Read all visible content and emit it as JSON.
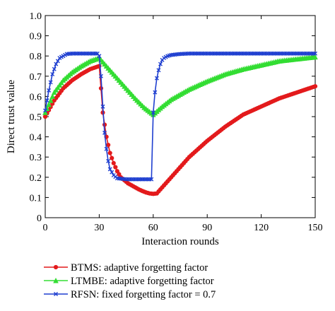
{
  "chart_data": {
    "type": "line",
    "title": "",
    "xlabel": "Interaction rounds",
    "ylabel": "Direct trust value",
    "xlim": [
      0,
      150
    ],
    "ylim": [
      0,
      1.0
    ],
    "xticks": [
      "0",
      "30",
      "60",
      "90",
      "120",
      "150"
    ],
    "yticks": [
      "0",
      "0.1",
      "0.2",
      "0.3",
      "0.4",
      "0.5",
      "0.6",
      "0.7",
      "0.8",
      "0.9",
      "1.0"
    ],
    "grid": false,
    "legend_position": "bottom",
    "series": [
      {
        "name": "BTMS: adaptive forgetting factor",
        "color": "#e31a1c",
        "marker": "circle",
        "x": [
          0,
          5,
          10,
          15,
          20,
          25,
          30,
          31,
          32,
          34,
          36,
          38,
          40,
          42,
          44,
          46,
          48,
          50,
          52,
          54,
          56,
          58,
          60,
          62,
          65,
          70,
          75,
          80,
          90,
          100,
          110,
          120,
          130,
          140,
          150
        ],
        "y": [
          0.5,
          0.58,
          0.64,
          0.68,
          0.71,
          0.735,
          0.75,
          0.64,
          0.52,
          0.4,
          0.32,
          0.27,
          0.23,
          0.2,
          0.185,
          0.17,
          0.16,
          0.15,
          0.14,
          0.132,
          0.125,
          0.12,
          0.118,
          0.12,
          0.15,
          0.2,
          0.25,
          0.3,
          0.38,
          0.45,
          0.51,
          0.55,
          0.59,
          0.62,
          0.65
        ]
      },
      {
        "name": "LTMBE: adaptive forgetting factor",
        "color": "#33dd33",
        "marker": "triangle",
        "x": [
          0,
          5,
          10,
          15,
          20,
          25,
          30,
          35,
          40,
          45,
          50,
          55,
          60,
          65,
          70,
          80,
          90,
          100,
          110,
          120,
          130,
          140,
          150
        ],
        "y": [
          0.52,
          0.62,
          0.68,
          0.72,
          0.75,
          0.775,
          0.79,
          0.74,
          0.69,
          0.64,
          0.59,
          0.545,
          0.51,
          0.55,
          0.585,
          0.635,
          0.675,
          0.71,
          0.735,
          0.755,
          0.775,
          0.785,
          0.795
        ]
      },
      {
        "name": "RFSN: fixed forgetting factor = 0.7",
        "color": "#1f3fd0",
        "marker": "x",
        "x": [
          0,
          2,
          4,
          6,
          8,
          10,
          12,
          15,
          20,
          25,
          29,
          30,
          31,
          32,
          33,
          34,
          35,
          36,
          38,
          40,
          45,
          50,
          55,
          58,
          59,
          60,
          61,
          62,
          63,
          64,
          65,
          66,
          68,
          70,
          75,
          80,
          90,
          100,
          110,
          120,
          130,
          140,
          150
        ],
        "y": [
          0.53,
          0.63,
          0.71,
          0.76,
          0.79,
          0.8,
          0.81,
          0.812,
          0.812,
          0.812,
          0.812,
          0.8,
          0.7,
          0.55,
          0.42,
          0.34,
          0.28,
          0.24,
          0.21,
          0.195,
          0.19,
          0.19,
          0.19,
          0.19,
          0.19,
          0.52,
          0.62,
          0.69,
          0.73,
          0.76,
          0.78,
          0.79,
          0.8,
          0.805,
          0.81,
          0.812,
          0.812,
          0.812,
          0.812,
          0.812,
          0.812,
          0.812,
          0.812
        ]
      }
    ]
  }
}
